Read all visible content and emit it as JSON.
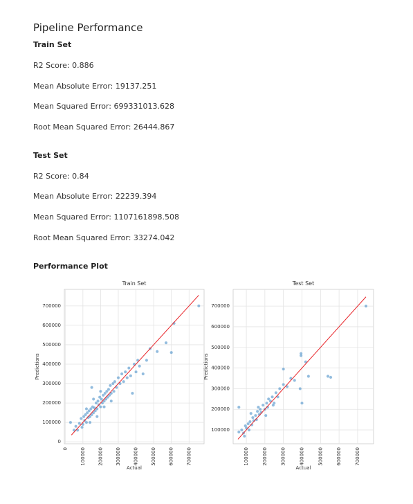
{
  "header": {
    "title": "Pipeline Performance"
  },
  "sections": [
    {
      "title": "Train Set",
      "metrics": [
        "R2 Score: 0.886",
        "Mean Absolute Error: 19137.251",
        "Mean Squared Error: 699331013.628",
        "Root Mean Squared Error: 26444.867"
      ]
    },
    {
      "title": "Test Set",
      "metrics": [
        "R2 Score: 0.84",
        "Mean Absolute Error: 22239.394",
        "Mean Squared Error: 1107161898.508",
        "Root Mean Squared Error: 33274.042"
      ]
    }
  ],
  "plot_title": "Performance Plot",
  "chart_data": [
    {
      "type": "scatter",
      "title": "Train Set",
      "x_label": "Actual",
      "y_label": "Predictions",
      "color": "#4a90c8",
      "xlim": [
        -5000,
        785000
      ],
      "ylim": [
        -10000,
        785000
      ],
      "xticks": [
        0,
        100000,
        200000,
        300000,
        400000,
        500000,
        600000,
        700000
      ],
      "yticks": [
        0,
        100000,
        200000,
        300000,
        400000,
        500000,
        600000,
        700000
      ],
      "grid": true,
      "x": [
        60000,
        80000,
        90000,
        100000,
        105000,
        110000,
        115000,
        120000,
        125000,
        130000,
        135000,
        140000,
        145000,
        150000,
        155000,
        160000,
        165000,
        170000,
        175000,
        180000,
        185000,
        190000,
        195000,
        200000,
        205000,
        210000,
        215000,
        220000,
        225000,
        230000,
        235000,
        240000,
        245000,
        250000,
        255000,
        260000,
        270000,
        275000,
        280000,
        290000,
        300000,
        310000,
        320000,
        330000,
        340000,
        350000,
        360000,
        370000,
        390000,
        400000,
        410000,
        70000,
        95000,
        140000,
        180000,
        220000,
        260000,
        160000,
        120000,
        200000,
        755000,
        615000,
        600000,
        570000,
        520000,
        480000,
        460000,
        420000,
        440000,
        380000,
        150000,
        30000,
        50000
      ],
      "y": [
        80000,
        95000,
        120000,
        90000,
        130000,
        110000,
        140000,
        100000,
        150000,
        125000,
        160000,
        130000,
        170000,
        140000,
        180000,
        150000,
        175000,
        160000,
        200000,
        170000,
        210000,
        190000,
        230000,
        180000,
        220000,
        200000,
        240000,
        210000,
        250000,
        220000,
        260000,
        230000,
        270000,
        240000,
        290000,
        250000,
        300000,
        260000,
        310000,
        280000,
        330000,
        300000,
        350000,
        310000,
        360000,
        330000,
        380000,
        340000,
        400000,
        360000,
        420000,
        60000,
        75000,
        100000,
        130000,
        180000,
        210000,
        220000,
        170000,
        260000,
        700000,
        610000,
        460000,
        510000,
        465000,
        480000,
        420000,
        390000,
        350000,
        250000,
        280000,
        100000,
        60000
      ],
      "line": {
        "color": "#e8252a",
        "x": [
          35000,
          755000
        ],
        "y": [
          35000,
          755000
        ]
      }
    },
    {
      "type": "scatter",
      "title": "Test Set",
      "x_label": "Actual",
      "y_label": "Predictions",
      "color": "#4a90c8",
      "xlim": [
        29000,
        786000
      ],
      "ylim": [
        33000,
        781000
      ],
      "xticks": [
        100000,
        200000,
        300000,
        400000,
        500000,
        600000,
        700000
      ],
      "yticks": [
        100000,
        200000,
        300000,
        400000,
        500000,
        600000,
        700000
      ],
      "grid": true,
      "x": [
        60000,
        75000,
        85000,
        95000,
        100000,
        110000,
        115000,
        120000,
        130000,
        135000,
        140000,
        150000,
        155000,
        160000,
        170000,
        175000,
        180000,
        190000,
        200000,
        210000,
        215000,
        220000,
        230000,
        240000,
        250000,
        260000,
        270000,
        280000,
        300000,
        320000,
        340000,
        360000,
        90000,
        125000,
        165000,
        205000,
        245000,
        745000,
        540000,
        555000,
        435000,
        395000,
        395000,
        300000,
        400000,
        390000,
        420000,
        60000
      ],
      "y": [
        90000,
        100000,
        85000,
        120000,
        110000,
        130000,
        100000,
        140000,
        125000,
        160000,
        145000,
        170000,
        150000,
        190000,
        175000,
        200000,
        185000,
        220000,
        200000,
        230000,
        210000,
        250000,
        240000,
        260000,
        230000,
        280000,
        260000,
        300000,
        320000,
        310000,
        350000,
        340000,
        70000,
        180000,
        210000,
        170000,
        220000,
        700000,
        360000,
        355000,
        360000,
        470000,
        460000,
        395000,
        230000,
        300000,
        430000,
        210000
      ],
      "line": {
        "color": "#e8252a",
        "x": [
          55000,
          745000
        ],
        "y": [
          55000,
          745000
        ]
      }
    }
  ]
}
